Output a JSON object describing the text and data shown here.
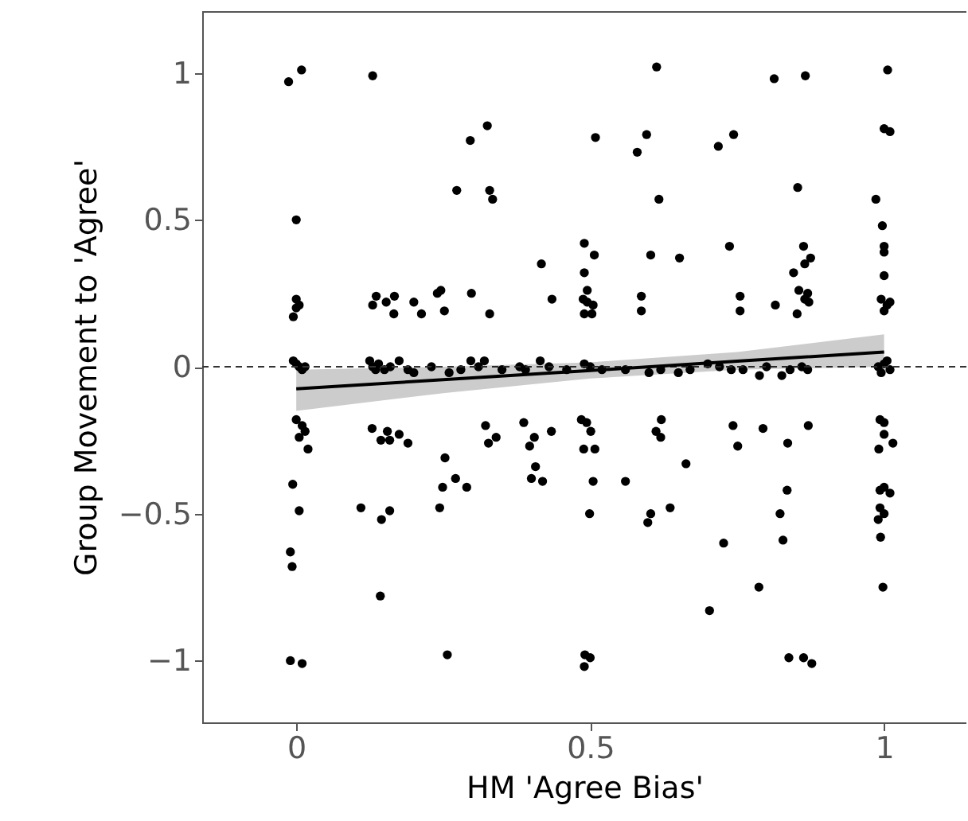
{
  "chart_data": {
    "type": "scatter",
    "xlabel": "HM 'Agree Bias'",
    "ylabel": "Group Movement to 'Agree'",
    "xlim": [
      -0.16,
      1.14
    ],
    "ylim": [
      -1.21,
      1.21
    ],
    "xticks": [
      0,
      0.5,
      1
    ],
    "yticks": [
      -1,
      -0.5,
      0,
      0.5,
      1
    ],
    "grid": false,
    "ref_lines": [
      {
        "axis": "y",
        "value": 0,
        "line_style": "dashed",
        "color": "#333333"
      }
    ],
    "series": [
      {
        "color": "#000000",
        "marker": "circle",
        "x": [
          -0.013,
          0.009,
          0.13,
          0.296,
          0.325,
          0.273,
          0.329,
          0.334,
          0.0,
          0.417,
          0.435,
          0.0,
          0.005,
          0.0,
          -0.005,
          0.13,
          0.136,
          0.153,
          0.167,
          0.166,
          0.2,
          0.213,
          0.24,
          0.246,
          0.252,
          0.298,
          0.329,
          0.613,
          0.813,
          0.866,
          1.006,
          0.509,
          0.596,
          0.58,
          0.718,
          0.744,
          1.0,
          1.01,
          0.617,
          0.853,
          0.986,
          0.997,
          1.0,
          1.0,
          1.0,
          0.995,
          1.005,
          1.0,
          1.01,
          0.49,
          0.507,
          0.49,
          0.495,
          0.488,
          0.495,
          0.505,
          0.49,
          0.503,
          0.603,
          0.652,
          0.587,
          0.587,
          0.737,
          0.755,
          0.755,
          0.815,
          0.852,
          0.863,
          0.875,
          0.865,
          0.846,
          0.855,
          0.87,
          0.865,
          0.872,
          0.0,
          0.01,
          0.015,
          0.005,
          0.02,
          -0.006,
          0.005,
          -0.01,
          -0.007,
          -0.01,
          0.01,
          0.129,
          0.144,
          0.155,
          0.159,
          0.175,
          0.19,
          0.11,
          0.145,
          0.159,
          0.143,
          0.253,
          0.249,
          0.271,
          0.29,
          0.244,
          0.257,
          0.322,
          0.327,
          0.34,
          0.387,
          0.397,
          0.405,
          0.434,
          0.407,
          0.4,
          0.419,
          0.485,
          0.494,
          0.501,
          0.489,
          0.508,
          0.505,
          0.56,
          0.499,
          0.621,
          0.612,
          0.62,
          0.663,
          0.603,
          0.598,
          0.636,
          0.743,
          0.751,
          0.794,
          0.871,
          0.836,
          0.835,
          0.823,
          0.828,
          0.727,
          0.787,
          0.703,
          0.491,
          0.5,
          0.49,
          0.838,
          0.863,
          0.877,
          0.993,
          1.0,
          1.0,
          1.015,
          0.991,
          0.993,
          1.0,
          1.01,
          0.993,
          1.0,
          0.99,
          0.994,
          0.998,
          0.0,
          0.005,
          0.01,
          -0.005,
          0.015,
          0.125,
          0.13,
          0.135,
          0.14,
          0.15,
          0.175,
          0.16,
          0.19,
          0.2,
          0.23,
          0.26,
          0.28,
          0.297,
          0.31,
          0.32,
          0.35,
          0.38,
          0.39,
          0.415,
          0.43,
          0.46,
          0.49,
          0.5,
          0.52,
          0.56,
          0.6,
          0.62,
          0.65,
          0.67,
          0.7,
          0.72,
          0.74,
          0.76,
          0.788,
          0.8,
          0.826,
          0.84,
          0.86,
          0.87,
          0.99,
          1.0,
          1.01,
          0.995,
          1.005
        ],
        "values": [
          0.97,
          1.01,
          0.99,
          0.77,
          0.82,
          0.6,
          0.6,
          0.57,
          0.5,
          0.35,
          0.23,
          0.23,
          0.21,
          0.2,
          0.17,
          0.21,
          0.24,
          0.22,
          0.24,
          0.18,
          0.22,
          0.18,
          0.25,
          0.26,
          0.19,
          0.25,
          0.18,
          1.02,
          0.98,
          0.99,
          1.01,
          0.78,
          0.79,
          0.73,
          0.75,
          0.79,
          0.81,
          0.8,
          0.57,
          0.61,
          0.57,
          0.48,
          0.41,
          0.39,
          0.31,
          0.23,
          0.21,
          0.19,
          0.22,
          0.42,
          0.38,
          0.32,
          0.26,
          0.23,
          0.22,
          0.21,
          0.18,
          0.18,
          0.38,
          0.37,
          0.24,
          0.19,
          0.41,
          0.24,
          0.19,
          0.21,
          0.18,
          0.41,
          0.37,
          0.35,
          0.32,
          0.26,
          0.25,
          0.23,
          0.22,
          -0.18,
          -0.2,
          -0.22,
          -0.24,
          -0.28,
          -0.4,
          -0.49,
          -0.63,
          -0.68,
          -1.0,
          -1.01,
          -0.21,
          -0.25,
          -0.22,
          -0.25,
          -0.23,
          -0.26,
          -0.48,
          -0.52,
          -0.49,
          -0.78,
          -0.31,
          -0.41,
          -0.38,
          -0.41,
          -0.48,
          -0.98,
          -0.2,
          -0.26,
          -0.24,
          -0.19,
          -0.27,
          -0.24,
          -0.22,
          -0.34,
          -0.38,
          -0.39,
          -0.18,
          -0.19,
          -0.22,
          -0.28,
          -0.28,
          -0.39,
          -0.39,
          -0.5,
          -0.18,
          -0.22,
          -0.24,
          -0.33,
          -0.5,
          -0.53,
          -0.48,
          -0.2,
          -0.27,
          -0.21,
          -0.2,
          -0.26,
          -0.42,
          -0.5,
          -0.59,
          -0.6,
          -0.75,
          -0.83,
          -0.98,
          -0.99,
          -1.02,
          -0.99,
          -0.99,
          -1.01,
          -0.18,
          -0.19,
          -0.23,
          -0.26,
          -0.28,
          -0.42,
          -0.41,
          -0.43,
          -0.48,
          -0.5,
          -0.52,
          -0.58,
          -0.75,
          0.01,
          0.0,
          -0.01,
          0.02,
          0.0,
          0.02,
          0.0,
          -0.01,
          0.01,
          -0.01,
          0.02,
          0.0,
          -0.01,
          -0.02,
          0.0,
          -0.02,
          -0.01,
          0.02,
          0.0,
          0.02,
          -0.01,
          0.0,
          -0.01,
          0.02,
          0.0,
          -0.01,
          0.01,
          0.0,
          -0.01,
          -0.01,
          -0.02,
          -0.01,
          -0.02,
          -0.01,
          0.01,
          0.0,
          -0.01,
          -0.01,
          -0.03,
          0.0,
          -0.03,
          -0.01,
          0.0,
          -0.01,
          0.0,
          0.01,
          -0.01,
          -0.02,
          0.02
        ]
      },
      {
        "type": "line",
        "color": "#000000",
        "x": [
          0,
          0.25,
          0.5,
          0.75,
          1
        ],
        "values": [
          -0.075,
          -0.044,
          -0.013,
          0.019,
          0.05
        ],
        "lower": [
          -0.15,
          -0.09,
          -0.04,
          -0.01,
          0.0
        ],
        "upper": [
          -0.01,
          0.0,
          0.015,
          0.05,
          0.11
        ]
      }
    ]
  }
}
